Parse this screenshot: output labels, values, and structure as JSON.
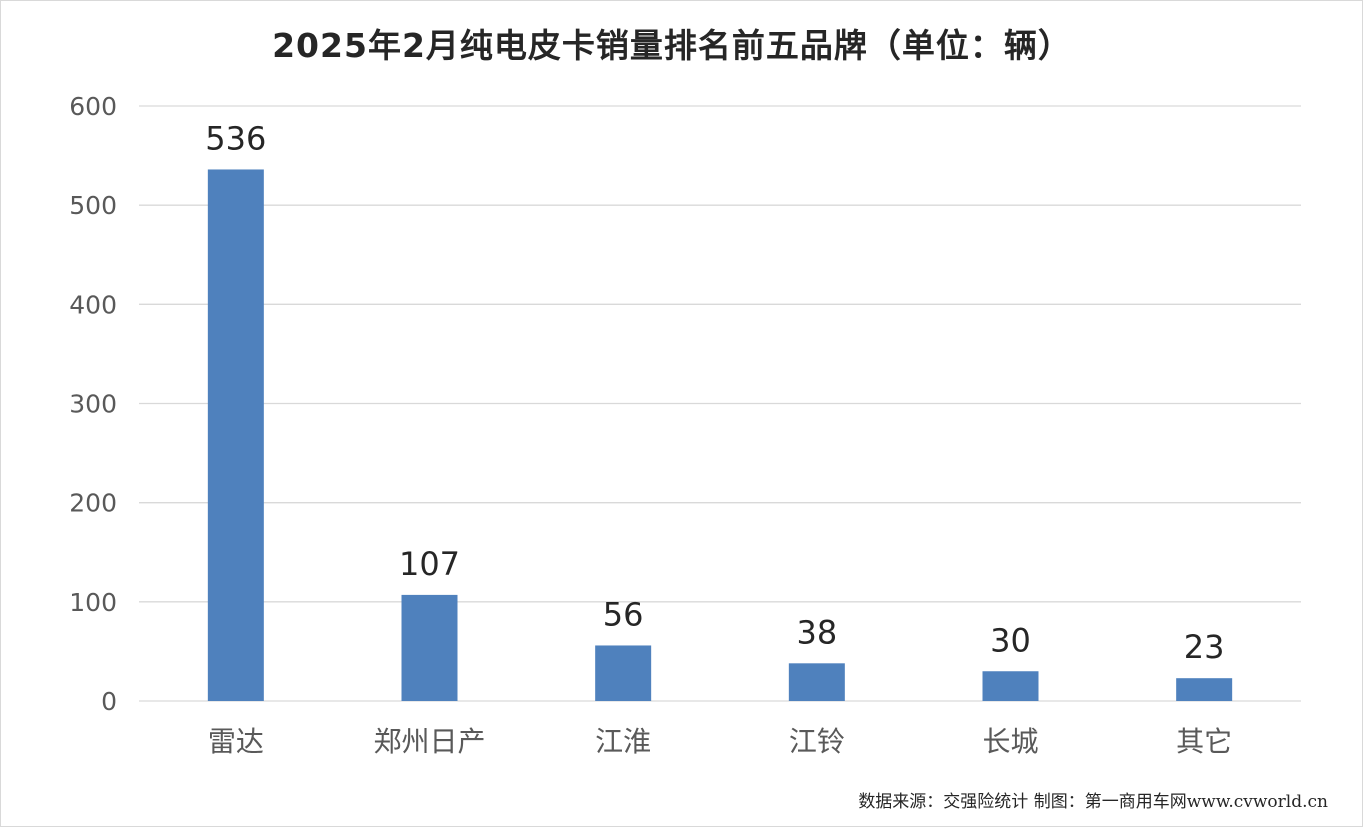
{
  "chart_data": {
    "type": "bar",
    "title": "2025年2月纯电皮卡销量排名前五品牌（单位：辆）",
    "categories": [
      "雷达",
      "郑州日产",
      "江淮",
      "江铃",
      "长城",
      "其它"
    ],
    "values": [
      536,
      107,
      56,
      38,
      30,
      23
    ],
    "data_labels": [
      "536",
      "107",
      "56",
      "38",
      "30",
      "23"
    ],
    "yticks": [
      "0",
      "100",
      "200",
      "300",
      "400",
      "500",
      "600"
    ],
    "ylim": [
      0,
      600
    ],
    "grid": true,
    "bar_color": "#4f81bd",
    "gridline_color": "#d9d9d9"
  },
  "footer": {
    "source": "数据来源：交强险统计 制图：第一商用车网www.cvworld.cn"
  }
}
